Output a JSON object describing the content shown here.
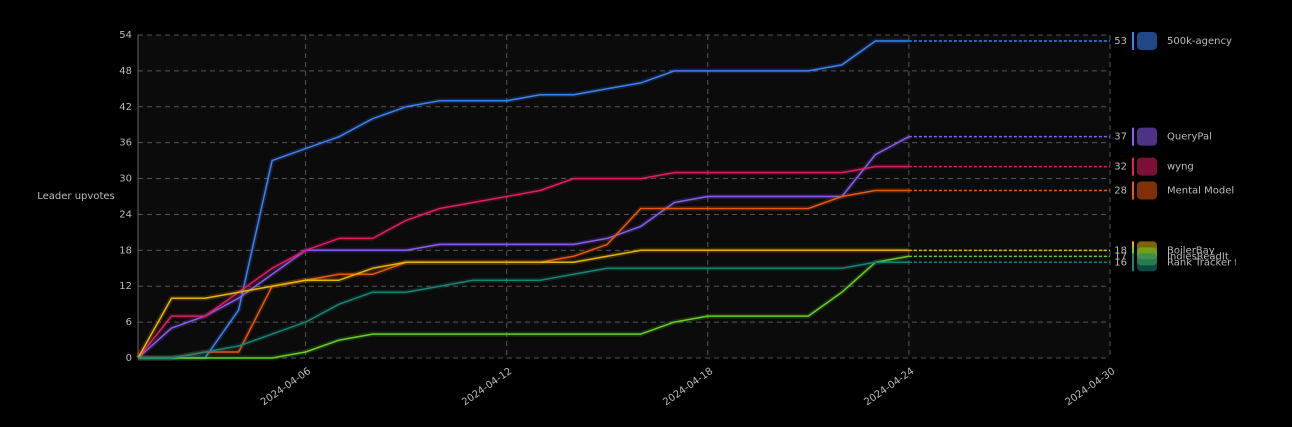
{
  "chart_data": {
    "type": "line",
    "y_label": "Leader upvotes",
    "x": [
      "2024-04-01",
      "2024-04-02",
      "2024-04-03",
      "2024-04-04",
      "2024-04-05",
      "2024-04-06",
      "2024-04-07",
      "2024-04-08",
      "2024-04-09",
      "2024-04-10",
      "2024-04-11",
      "2024-04-12",
      "2024-04-13",
      "2024-04-14",
      "2024-04-15",
      "2024-04-16",
      "2024-04-17",
      "2024-04-18",
      "2024-04-19",
      "2024-04-20",
      "2024-04-21",
      "2024-04-22",
      "2024-04-23",
      "2024-04-24"
    ],
    "xlim": [
      "2024-04-01",
      "2024-04-30"
    ],
    "xticks": [
      "2024-04-06",
      "2024-04-12",
      "2024-04-18",
      "2024-04-24",
      "2024-04-30"
    ],
    "ylim": [
      0,
      54
    ],
    "yticks": [
      0,
      6,
      12,
      18,
      24,
      30,
      36,
      42,
      48,
      54
    ],
    "grid": true,
    "series": [
      {
        "name": "500k-agency",
        "color": "#3b82f6",
        "values": [
          0,
          0,
          0,
          8,
          33,
          35,
          37,
          40,
          42,
          43,
          43,
          43,
          44,
          44,
          45,
          46,
          48,
          48,
          48,
          48,
          48,
          49,
          53,
          53
        ]
      },
      {
        "name": "QueryPal",
        "color": "#8b5cf6",
        "values": [
          0,
          5,
          7,
          10,
          14,
          18,
          18,
          18,
          18,
          19,
          19,
          19,
          19,
          19,
          20,
          22,
          26,
          27,
          27,
          27,
          27,
          27,
          34,
          37
        ]
      },
      {
        "name": "wyng",
        "color": "#e11d64",
        "values": [
          0,
          7,
          7,
          11,
          15,
          18,
          20,
          20,
          23,
          25,
          26,
          27,
          28,
          30,
          30,
          30,
          31,
          31,
          31,
          31,
          31,
          31,
          32,
          32
        ]
      },
      {
        "name": "Mental Model I",
        "color": "#ea580c",
        "values": [
          0,
          0,
          1,
          1,
          12,
          13,
          14,
          14,
          16,
          16,
          16,
          16,
          16,
          17,
          19,
          25,
          25,
          25,
          25,
          25,
          25,
          27,
          28,
          28
        ]
      },
      {
        "name": "BoilerBay",
        "color": "#eab308",
        "values": [
          0,
          10,
          10,
          11,
          12,
          13,
          13,
          15,
          16,
          16,
          16,
          16,
          16,
          16,
          17,
          18,
          18,
          18,
          18,
          18,
          18,
          18,
          18,
          18
        ]
      },
      {
        "name": "IndiesReadIt",
        "color": "#65d127",
        "values": [
          0,
          0,
          0,
          0,
          0,
          1,
          3,
          4,
          4,
          4,
          4,
          4,
          4,
          4,
          4,
          4,
          6,
          7,
          7,
          7,
          7,
          11,
          16,
          17
        ]
      },
      {
        "name": "Rank Tracker f",
        "color": "#14857a",
        "values": [
          0,
          0,
          1,
          2,
          4,
          6,
          9,
          11,
          11,
          12,
          13,
          13,
          13,
          14,
          15,
          15,
          15,
          15,
          15,
          15,
          15,
          15,
          16,
          16
        ]
      }
    ]
  }
}
